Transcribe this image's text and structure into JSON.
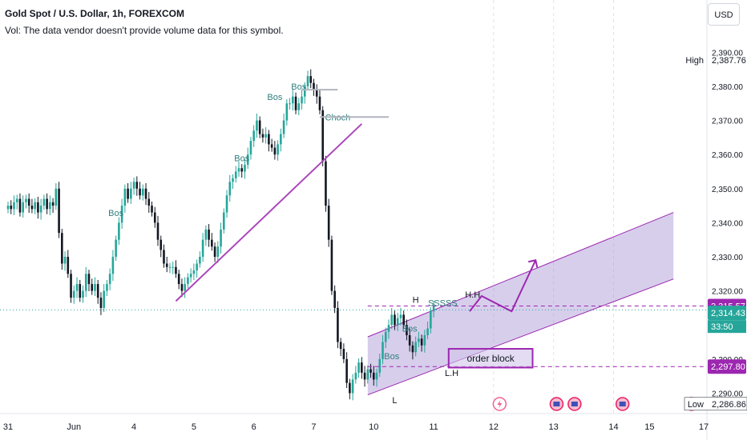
{
  "legend": {
    "title": "Gold Spot / U.S. Dollar, 1h, FOREXCOM",
    "volume_note": "Vol: The data vendor doesn't provide volume data for this symbol."
  },
  "currency_button": "USD",
  "colors": {
    "up": "#26a69a",
    "down": "#131722",
    "channel_fill": "#9c85d0",
    "channel_stroke": "#9c27b0",
    "trendline": "#ab47bc",
    "order_block": "#9c27b0",
    "label_bg": "#9c27b0",
    "current_price_bg": "#26a69a",
    "bos_text": "#2f7e7e"
  },
  "chart_data": {
    "type": "candlestick",
    "ylim": [
      2284,
      2395
    ],
    "y_ticks": [
      "2,290.00",
      "2,300.00",
      "2,310.00",
      "2,320.00",
      "2,330.00",
      "2,340.00",
      "2,350.00",
      "2,360.00",
      "2,370.00",
      "2,380.00",
      "2,390.00"
    ],
    "x_ticks": [
      {
        "label": "31",
        "i": 0
      },
      {
        "label": "Jun",
        "i": 22
      },
      {
        "label": "4",
        "i": 42
      },
      {
        "label": "5",
        "i": 62
      },
      {
        "label": "6",
        "i": 82
      },
      {
        "label": "7",
        "i": 102
      },
      {
        "label": "10",
        "i": 122
      },
      {
        "label": "11",
        "i": 142
      },
      {
        "label": "12",
        "i": 162
      },
      {
        "label": "13",
        "i": 182
      },
      {
        "label": "14",
        "i": 202
      },
      {
        "label": "15",
        "i": 222
      },
      {
        "label": "17",
        "i": 222
      }
    ],
    "closes": [
      2345,
      2344,
      2346,
      2347,
      2343,
      2346,
      2347,
      2345,
      2344,
      2346,
      2343,
      2345,
      2347,
      2344,
      2346,
      2345,
      2350,
      2337,
      2328,
      2330,
      2325,
      2318,
      2320,
      2322,
      2318,
      2320,
      2325,
      2322,
      2320,
      2322,
      2318,
      2315,
      2320,
      2322,
      2325,
      2330,
      2335,
      2340,
      2345,
      2350,
      2347,
      2350,
      2352,
      2350,
      2348,
      2350,
      2347,
      2345,
      2343,
      2340,
      2335,
      2332,
      2328,
      2327,
      2327,
      2327,
      2325,
      2322,
      2320,
      2322,
      2324,
      2325,
      2326,
      2328,
      2330,
      2335,
      2338,
      2335,
      2333,
      2330,
      2333,
      2338,
      2343,
      2348,
      2352,
      2353,
      2355,
      2356,
      2355,
      2357,
      2360,
      2364,
      2367,
      2370,
      2366,
      2365,
      2366,
      2363,
      2362,
      2360,
      2363,
      2366,
      2370,
      2375,
      2375,
      2377,
      2373,
      2375,
      2377,
      2380,
      2383,
      2381,
      2379,
      2377,
      2373,
      2358,
      2345,
      2335,
      2320,
      2315,
      2305,
      2303,
      2300,
      2293,
      2290,
      2294,
      2296,
      2299,
      2296,
      2294,
      2297,
      2296,
      2294,
      2296,
      2300,
      2305,
      2308,
      2310,
      2313,
      2310,
      2312,
      2313,
      2310,
      2307,
      2304,
      2302,
      2305,
      2306,
      2304,
      2307,
      2309,
      2314,
      2315.5
    ],
    "h_levels": [
      {
        "value": 2315.57,
        "label": "2,315.57",
        "style": "dashed"
      },
      {
        "value": 2297.8,
        "label": "2,297.80",
        "style": "dashed"
      }
    ],
    "current_price": {
      "value": 2314.43,
      "label": "2,314.43",
      "timer": "33:50"
    },
    "high": {
      "label": "High",
      "value": "2,387.76",
      "price": 2387.76
    },
    "low": {
      "label": "Low",
      "value": "2,286.86",
      "price": 2286.86
    },
    "annotations": [
      {
        "text": "Bos",
        "i": 36,
        "price": 2342
      },
      {
        "text": "Bos",
        "i": 78,
        "price": 2358
      },
      {
        "text": "Bos",
        "i": 89,
        "price": 2376
      },
      {
        "text": "Bos",
        "i": 97,
        "price": 2379
      },
      {
        "text": "Choch",
        "i": 110,
        "price": 2370
      },
      {
        "text": "Bos",
        "i": 128,
        "price": 2300
      },
      {
        "text": "Bos",
        "i": 134,
        "price": 2308
      },
      {
        "text": "SSSSS",
        "i": 145,
        "price": 2315.6
      },
      {
        "text": "H",
        "i": 136,
        "price": 2316.5
      },
      {
        "text": "H.H",
        "i": 155,
        "price": 2318
      },
      {
        "text": "L",
        "i": 129,
        "price": 2287
      },
      {
        "text": "L.H",
        "i": 148,
        "price": 2295
      }
    ],
    "order_block": {
      "label": "order block",
      "top": 2303,
      "bottom": 2297.5,
      "start_i": 147,
      "end_i": 175
    },
    "channel": {
      "lower": {
        "i1": 120,
        "p1": 2289.5,
        "i2": 222,
        "p2": 2323.5
      },
      "upper": {
        "i1": 120,
        "p1": 2306.5,
        "i2": 222,
        "p2": 2343
      }
    },
    "trendline": {
      "i1": 56,
      "p1": 2317,
      "i2": 118,
      "p2": 2369
    }
  }
}
